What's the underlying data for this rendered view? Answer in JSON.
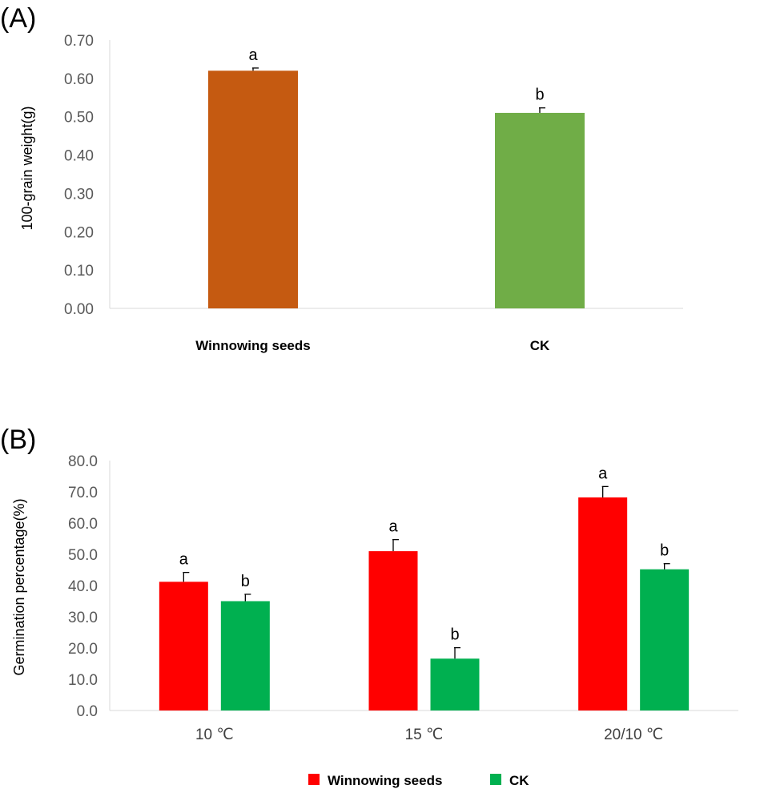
{
  "chart_data": [
    {
      "panel": "(A)",
      "type": "bar",
      "categories": [
        "Winnowing seeds",
        "CK"
      ],
      "values": [
        0.62,
        0.51
      ],
      "errors": [
        0.007,
        0.013
      ],
      "significance": [
        "a",
        "b"
      ],
      "colors": [
        "#c55a11",
        "#70ad47"
      ],
      "ylabel": "100-grain weight(g)",
      "ylim": [
        0,
        0.7
      ],
      "yticks": [
        "0.00",
        "0.10",
        "0.20",
        "0.30",
        "0.40",
        "0.50",
        "0.60",
        "0.70"
      ],
      "grid": false
    },
    {
      "panel": "(B)",
      "type": "bar",
      "categories": [
        "10 ℃",
        "15 ℃",
        "20/10 ℃"
      ],
      "series": [
        {
          "name": "Winnowing seeds",
          "color": "#ff0000",
          "values": [
            41.2,
            51.0,
            68.2
          ],
          "errors": [
            3.0,
            3.7,
            3.5
          ],
          "significance": [
            "a",
            "a",
            "a"
          ]
        },
        {
          "name": "CK",
          "color": "#00b050",
          "values": [
            35.0,
            16.6,
            45.2
          ],
          "errors": [
            2.2,
            3.5,
            1.8
          ],
          "significance": [
            "b",
            "b",
            "b"
          ]
        }
      ],
      "ylabel": "Germination percentage(%)",
      "ylim": [
        0,
        80
      ],
      "yticks": [
        "0.0",
        "10.0",
        "20.0",
        "30.0",
        "40.0",
        "50.0",
        "60.0",
        "70.0",
        "80.0"
      ],
      "grid": false,
      "legend_position": "bottom"
    }
  ]
}
